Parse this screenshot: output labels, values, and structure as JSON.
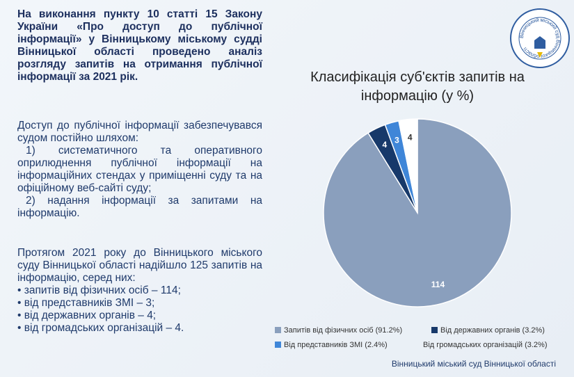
{
  "text": {
    "intro": "На виконання пункту 10 статті 15 Закону України «Про доступ до публічної інформації» у Вінницькому міському судді Вінницької області проведено аналіз розгляду запитів на отримання публічної інформації за 2021 рік.",
    "access": {
      "lead": "Доступ до публічної інформації забезпечувався судом постійно шляхом:",
      "items": [
        "1) систематичного та оперативного оприлюднення публічної інформації на інформаційних стендах у приміщенні суду та на офіційному веб-сайті суду;",
        "2) надання інформації за запитами на інформацію."
      ]
    },
    "stats": {
      "lead": "Протягом 2021 року до Вінницького міського суду Вінницької області надійшло 125 запитів на інформацію, серед них:",
      "items": [
        "• запитів від фізичних осіб – 114;",
        "• від представників ЗМІ – 3;",
        "• від державних органів – 4;",
        "• від громадських організацій – 4."
      ]
    }
  },
  "logo_text": "Вінницький міський суд Вінницької області",
  "footer": "Вінницький міський суд Вінницької області",
  "chart_data": {
    "type": "pie",
    "title": "Класифікація суб'єктів запитів на інформацію (у %)",
    "categories": [
      "Запитів від фізичних осіб (91.2%)",
      "Від державних органів (3.2%)",
      "Від представників ЗМІ (2.4%)",
      "Від громадських організацій (3.2%)"
    ],
    "values": [
      114,
      4,
      3,
      4
    ],
    "colors": [
      "#8a9fbd",
      "#17396a",
      "#3f86d8",
      "#ffffff"
    ]
  }
}
